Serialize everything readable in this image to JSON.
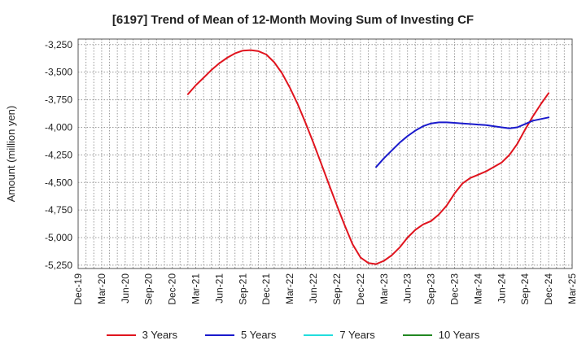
{
  "chart_data": {
    "type": "line",
    "title": "[6197]  Trend of Mean of 12-Month Moving Sum of Investing CF",
    "xlabel": "",
    "ylabel": "Amount (million yen)",
    "x_ticks": [
      "Dec-19",
      "Mar-20",
      "Jun-20",
      "Sep-20",
      "Dec-20",
      "Mar-21",
      "Jun-21",
      "Sep-21",
      "Dec-21",
      "Mar-22",
      "Jun-22",
      "Sep-22",
      "Dec-22",
      "Mar-23",
      "Jun-23",
      "Sep-23",
      "Dec-23",
      "Mar-24",
      "Jun-24",
      "Sep-24",
      "Dec-24",
      "Mar-25"
    ],
    "y_ticks": [
      -3250,
      -3500,
      -3750,
      -4000,
      -4250,
      -4500,
      -4750,
      -5000,
      -5250
    ],
    "ylim": [
      -5280,
      -3200
    ],
    "grid": true,
    "legend_position": "bottom",
    "series": [
      {
        "name": "3 Years",
        "color": "#e0141e",
        "x": [
          "2021-02",
          "2021-03",
          "2021-04",
          "2021-05",
          "2021-06",
          "2021-07",
          "2021-08",
          "2021-09",
          "2021-10",
          "2021-11",
          "2021-12",
          "2022-01",
          "2022-02",
          "2022-03",
          "2022-04",
          "2022-05",
          "2022-06",
          "2022-07",
          "2022-08",
          "2022-09",
          "2022-10",
          "2022-11",
          "2022-12",
          "2023-01",
          "2023-02",
          "2023-03",
          "2023-04",
          "2023-05",
          "2023-06",
          "2023-07",
          "2023-08",
          "2023-09",
          "2023-10",
          "2023-11",
          "2023-12",
          "2024-01",
          "2024-02",
          "2024-03",
          "2024-04",
          "2024-05",
          "2024-06",
          "2024-07",
          "2024-08",
          "2024-09",
          "2024-10",
          "2024-11",
          "2024-12"
        ],
        "values": [
          -3700,
          -3620,
          -3550,
          -3480,
          -3420,
          -3370,
          -3330,
          -3305,
          -3300,
          -3310,
          -3340,
          -3410,
          -3510,
          -3640,
          -3790,
          -3960,
          -4140,
          -4330,
          -4520,
          -4710,
          -4890,
          -5060,
          -5180,
          -5230,
          -5240,
          -5210,
          -5160,
          -5090,
          -5000,
          -4930,
          -4880,
          -4850,
          -4790,
          -4710,
          -4600,
          -4510,
          -4460,
          -4430,
          -4400,
          -4360,
          -4320,
          -4250,
          -4150,
          -4020,
          -3900,
          -3790,
          -3690
        ]
      },
      {
        "name": "5 Years",
        "color": "#1a1acc",
        "x": [
          "2023-02",
          "2023-03",
          "2023-04",
          "2023-05",
          "2023-06",
          "2023-07",
          "2023-08",
          "2023-09",
          "2023-10",
          "2023-11",
          "2023-12",
          "2024-01",
          "2024-02",
          "2024-03",
          "2024-04",
          "2024-05",
          "2024-06",
          "2024-07",
          "2024-08",
          "2024-09",
          "2024-10",
          "2024-11",
          "2024-12"
        ],
        "values": [
          -4360,
          -4280,
          -4210,
          -4140,
          -4080,
          -4030,
          -3990,
          -3965,
          -3955,
          -3955,
          -3960,
          -3965,
          -3970,
          -3975,
          -3980,
          -3990,
          -4000,
          -4010,
          -4000,
          -3970,
          -3940,
          -3925,
          -3910
        ]
      },
      {
        "name": "7 Years",
        "color": "#22dddd",
        "x": [],
        "values": []
      },
      {
        "name": "10 Years",
        "color": "#228822",
        "x": [],
        "values": []
      }
    ]
  }
}
